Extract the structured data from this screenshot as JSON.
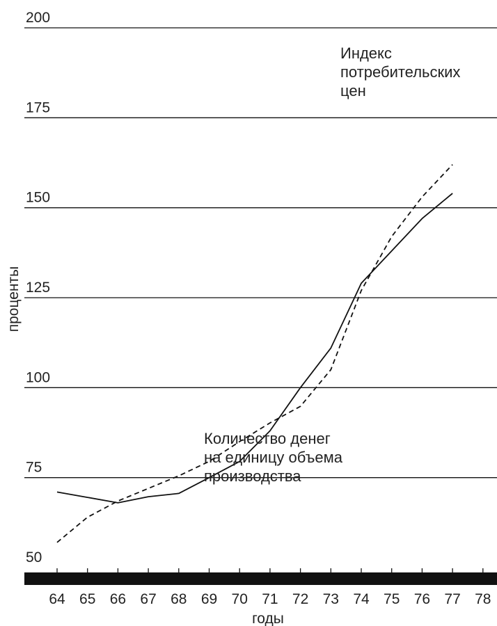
{
  "chart_data": {
    "type": "line",
    "xlabel": "годы",
    "ylabel": "проценты",
    "x": [
      "64",
      "65",
      "66",
      "67",
      "68",
      "69",
      "70",
      "71",
      "72",
      "73",
      "74",
      "75",
      "76",
      "77",
      "78"
    ],
    "yticks": [
      "50",
      "75",
      "100",
      "125",
      "150",
      "175",
      "200"
    ],
    "ylim": [
      50,
      200
    ],
    "xlim": [
      64,
      78
    ],
    "grid": true,
    "series": [
      {
        "id": "money-per-output",
        "values": [
          71,
          69.5,
          68,
          69.7,
          70.6,
          75,
          79.5,
          88,
          100,
          111,
          129,
          138,
          147,
          154,
          null
        ],
        "style": "solid",
        "color": "#111111"
      },
      {
        "id": "cpi",
        "values": [
          57,
          64,
          68.5,
          72,
          75.5,
          79.5,
          85,
          90.2,
          94.8,
          105,
          127,
          142,
          153,
          162,
          null
        ],
        "style": "dashed",
        "color": "#111111"
      }
    ],
    "annotations": [
      {
        "target": "cpi",
        "lines": [
          "Индекс",
          "потребительских",
          "цен"
        ]
      },
      {
        "target": "money-per-output",
        "lines": [
          "Количество денег",
          "на единицу объема",
          "производства"
        ]
      }
    ]
  }
}
